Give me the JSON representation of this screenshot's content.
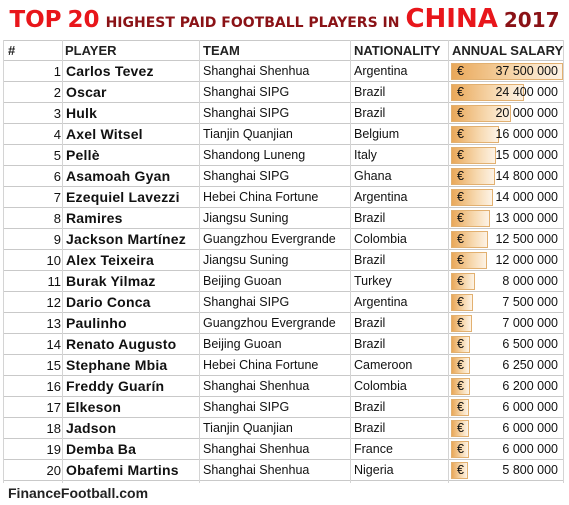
{
  "title": {
    "top": "TOP",
    "num": "20",
    "mid": "HIGHEST PAID FOOTBALL PLAYERS IN",
    "china": "CHINA",
    "year": "2017"
  },
  "colors": {
    "title_red": "#e8161b",
    "title_dark": "#8a1216",
    "bar": "#e9a85a"
  },
  "headers": {
    "hash": "#",
    "player": "PLAYER",
    "team": "TEAM",
    "nationality": "NATIONALITY",
    "salary": "ANNUAL SALARY"
  },
  "currency_symbol": "€",
  "footer": "FinanceFootball.com",
  "chart_data": {
    "type": "table",
    "columns": [
      "#",
      "PLAYER",
      "TEAM",
      "NATIONALITY",
      "ANNUAL SALARY"
    ],
    "max_salary": 37500000,
    "rows": [
      {
        "rank": "1",
        "player": "Carlos Tevez",
        "team": "Shanghai Shenhua",
        "nationality": "Argentina",
        "salary_text": "37 500 000",
        "salary": 37500000
      },
      {
        "rank": "2",
        "player": "Oscar",
        "team": "Shanghai SIPG",
        "nationality": "Brazil",
        "salary_text": "24 400 000",
        "salary": 24400000
      },
      {
        "rank": "3",
        "player": "Hulk",
        "team": "Shanghai SIPG",
        "nationality": "Brazil",
        "salary_text": "20 000 000",
        "salary": 20000000
      },
      {
        "rank": "4",
        "player": "Axel Witsel",
        "team": "Tianjin Quanjian",
        "nationality": "Belgium",
        "salary_text": "16 000 000",
        "salary": 16000000
      },
      {
        "rank": "5",
        "player": "Pellè",
        "team": "Shandong Luneng",
        "nationality": "Italy",
        "salary_text": "15 000 000",
        "salary": 15000000
      },
      {
        "rank": "6",
        "player": "Asamoah Gyan",
        "team": "Shanghai SIPG",
        "nationality": "Ghana",
        "salary_text": "14 800 000",
        "salary": 14800000
      },
      {
        "rank": "7",
        "player": "Ezequiel Lavezzi",
        "team": "Hebei China Fortune",
        "nationality": "Argentina",
        "salary_text": "14 000 000",
        "salary": 14000000
      },
      {
        "rank": "8",
        "player": "Ramires",
        "team": "Jiangsu Suning",
        "nationality": "Brazil",
        "salary_text": "13 000 000",
        "salary": 13000000
      },
      {
        "rank": "9",
        "player": "Jackson Martínez",
        "team": "Guangzhou Evergrande",
        "nationality": "Colombia",
        "salary_text": "12 500 000",
        "salary": 12500000
      },
      {
        "rank": "10",
        "player": "Alex Teixeira",
        "team": "Jiangsu Suning",
        "nationality": "Brazil",
        "salary_text": "12 000 000",
        "salary": 12000000
      },
      {
        "rank": "11",
        "player": "Burak Yilmaz",
        "team": "Beijing Guoan",
        "nationality": "Turkey",
        "salary_text": "8 000 000",
        "salary": 8000000
      },
      {
        "rank": "12",
        "player": "Dario Conca",
        "team": "Shanghai SIPG",
        "nationality": "Argentina",
        "salary_text": "7 500 000",
        "salary": 7500000
      },
      {
        "rank": "13",
        "player": "Paulinho",
        "team": "Guangzhou Evergrande",
        "nationality": "Brazil",
        "salary_text": "7 000 000",
        "salary": 7000000
      },
      {
        "rank": "14",
        "player": "Renato Augusto",
        "team": "Beijing Guoan",
        "nationality": "Brazil",
        "salary_text": "6 500 000",
        "salary": 6500000
      },
      {
        "rank": "15",
        "player": "Stephane Mbia",
        "team": "Hebei China Fortune",
        "nationality": "Cameroon",
        "salary_text": "6 250 000",
        "salary": 6250000
      },
      {
        "rank": "16",
        "player": "Freddy Guarín",
        "team": "Shanghai Shenhua",
        "nationality": "Colombia",
        "salary_text": "6 200 000",
        "salary": 6200000
      },
      {
        "rank": "17",
        "player": "Elkeson",
        "team": "Shanghai SIPG",
        "nationality": "Brazil",
        "salary_text": "6 000 000",
        "salary": 6000000
      },
      {
        "rank": "18",
        "player": "Jadson",
        "team": "Tianjin Quanjian",
        "nationality": "Brazil",
        "salary_text": "6 000 000",
        "salary": 6000000
      },
      {
        "rank": "19",
        "player": "Demba Ba",
        "team": "Shanghai Shenhua",
        "nationality": "France",
        "salary_text": "6 000 000",
        "salary": 6000000
      },
      {
        "rank": "20",
        "player": "Obafemi Martins",
        "team": "Shanghai Shenhua",
        "nationality": "Nigeria",
        "salary_text": "5 800 000",
        "salary": 5800000
      }
    ]
  }
}
